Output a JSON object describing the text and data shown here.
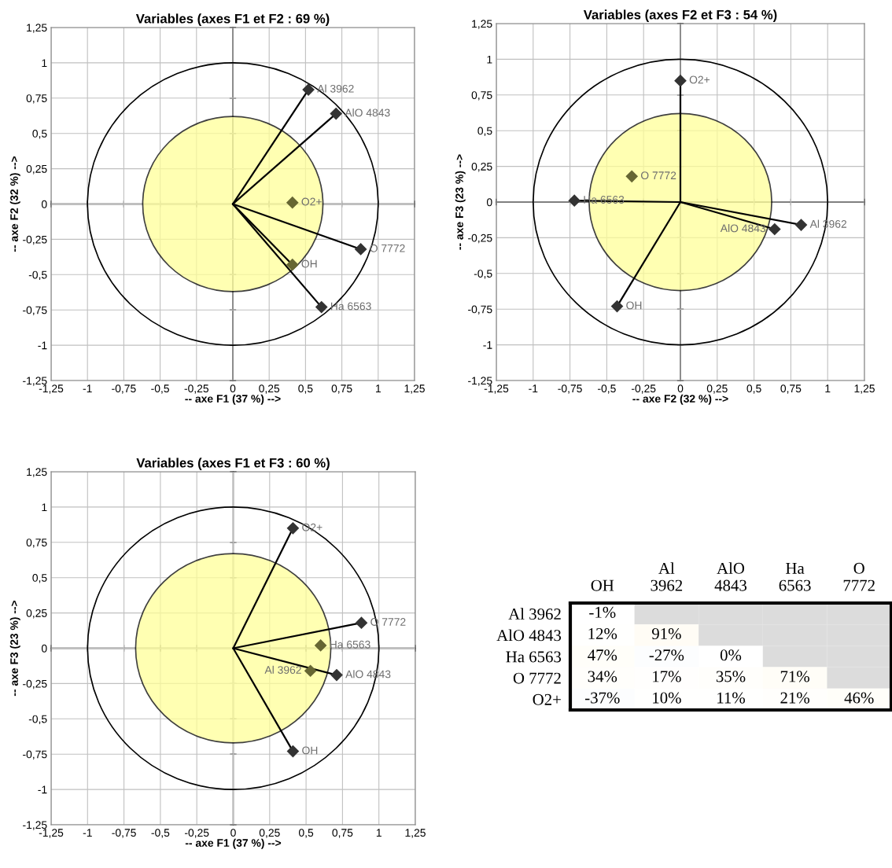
{
  "chart_data": [
    {
      "type": "scatter",
      "title": "Variables (axes F1 et F2 : 69 %)",
      "xlabel": "-- axe F1 (37 %) -->",
      "ylabel": "-- axe F2 (32 %) -->",
      "xlim": [
        -1.25,
        1.25
      ],
      "ylim": [
        -1.25,
        1.25
      ],
      "xticks": [
        {
          "value": -1.25,
          "label": "-1,25"
        },
        -1,
        {
          "value": -0.75,
          "label": "-0,75"
        },
        {
          "value": -0.5,
          "label": "-0,5"
        },
        {
          "value": -0.25,
          "label": "-0,25"
        },
        0,
        {
          "value": 0.25,
          "label": "0,25"
        },
        {
          "value": 0.5,
          "label": "0,5"
        },
        {
          "value": 0.75,
          "label": "0,75"
        },
        1,
        {
          "value": 1.25,
          "label": "1,25"
        }
      ],
      "yticks": [
        {
          "value": -1.25,
          "label": "-1,25"
        },
        -1,
        {
          "value": -0.75,
          "label": "-0,75"
        },
        {
          "value": -0.5,
          "label": "-0,5"
        },
        {
          "value": -0.25,
          "label": "-0,25"
        },
        0,
        {
          "value": 0.25,
          "label": "0,25"
        },
        {
          "value": 0.5,
          "label": "0,5"
        },
        {
          "value": 0.75,
          "label": "0,75"
        },
        1,
        {
          "value": 1.25,
          "label": "1,25"
        }
      ],
      "grid": true,
      "series": [
        {
          "type": "line",
          "color": "#000000",
          "x": [
            0,
            0.52
          ],
          "values": [
            0,
            0.81
          ]
        },
        {
          "type": "line",
          "color": "#000000",
          "x": [
            0,
            0.71
          ],
          "values": [
            0,
            0.64
          ]
        },
        {
          "type": "line",
          "color": "#000000",
          "x": [
            0,
            0.88
          ],
          "values": [
            0,
            -0.32
          ]
        },
        {
          "type": "line",
          "color": "#000000",
          "x": [
            0,
            0.41
          ],
          "values": [
            0,
            -0.43
          ]
        },
        {
          "type": "line",
          "color": "#000000",
          "x": [
            0,
            0.61
          ],
          "values": [
            0,
            -0.73
          ]
        },
        {
          "type": "scatter",
          "name": "Al 3962",
          "color": "#333333",
          "marker": "diamond",
          "x": [
            0.52
          ],
          "values": [
            0.81
          ]
        },
        {
          "type": "scatter",
          "name": "AlO 4843",
          "color": "#333333",
          "marker": "diamond",
          "x": [
            0.71
          ],
          "values": [
            0.64
          ]
        },
        {
          "type": "scatter",
          "name": "O2+",
          "color": "#666633",
          "marker": "diamond",
          "x": [
            0.41
          ],
          "values": [
            0.01
          ]
        },
        {
          "type": "scatter",
          "name": "O 7772",
          "color": "#333333",
          "marker": "diamond",
          "x": [
            0.88
          ],
          "values": [
            -0.32
          ]
        },
        {
          "type": "scatter",
          "name": "OH",
          "color": "#666633",
          "marker": "diamond",
          "x": [
            0.41
          ],
          "values": [
            -0.43
          ]
        },
        {
          "type": "scatter",
          "name": "Ha 6563",
          "color": "#333333",
          "marker": "diamond",
          "x": [
            0.61
          ],
          "values": [
            -0.73
          ]
        }
      ]
    },
    {
      "type": "scatter",
      "title": "Variables (axes F2 et F3 : 54 %)",
      "xlabel": "-- axe F2 (32 %) -->",
      "ylabel": "-- axe F3 (23 %) -->",
      "xlim": [
        -1.25,
        1.25
      ],
      "ylim": [
        -1.25,
        1.25
      ],
      "xticks": [
        {
          "value": -1.25,
          "label": "-1,25"
        },
        -1,
        {
          "value": -0.75,
          "label": "-0,75"
        },
        {
          "value": -0.5,
          "label": "-0,5"
        },
        {
          "value": -0.25,
          "label": "-0,25"
        },
        0,
        {
          "value": 0.25,
          "label": "0,25"
        },
        {
          "value": 0.5,
          "label": "0,5"
        },
        {
          "value": 0.75,
          "label": "0,75"
        },
        1,
        {
          "value": 1.25,
          "label": "1,25"
        }
      ],
      "yticks": [
        {
          "value": -1.25,
          "label": "-1,25"
        },
        -1,
        {
          "value": -0.75,
          "label": "-0,75"
        },
        {
          "value": -0.5,
          "label": "-0,5"
        },
        {
          "value": -0.25,
          "label": "-0,25"
        },
        0,
        {
          "value": 0.25,
          "label": "0,25"
        },
        {
          "value": 0.5,
          "label": "0,5"
        },
        {
          "value": 0.75,
          "label": "0,75"
        },
        1,
        {
          "value": 1.25,
          "label": "1,25"
        }
      ],
      "grid": true,
      "series": [
        {
          "type": "line",
          "color": "#000000",
          "x": [
            0,
            0
          ],
          "values": [
            0,
            0.85
          ]
        },
        {
          "type": "line",
          "color": "#000000",
          "x": [
            0,
            -0.72
          ],
          "values": [
            0,
            0.01
          ]
        },
        {
          "type": "line",
          "color": "#000000",
          "x": [
            0,
            -0.43
          ],
          "values": [
            0,
            -0.73
          ]
        },
        {
          "type": "line",
          "color": "#000000",
          "x": [
            0,
            0.64
          ],
          "values": [
            0,
            -0.19
          ]
        },
        {
          "type": "line",
          "color": "#000000",
          "x": [
            0,
            0.82
          ],
          "values": [
            0,
            -0.16
          ]
        },
        {
          "type": "scatter",
          "name": "O2+",
          "color": "#333333",
          "marker": "diamond",
          "x": [
            0
          ],
          "values": [
            0.85
          ]
        },
        {
          "type": "scatter",
          "name": "O 7772",
          "color": "#666633",
          "marker": "diamond",
          "x": [
            -0.33
          ],
          "values": [
            0.18
          ]
        },
        {
          "type": "scatter",
          "name": "Ha 6563",
          "color": "#333333",
          "marker": "diamond",
          "x": [
            -0.72
          ],
          "values": [
            0.01
          ]
        },
        {
          "type": "scatter",
          "name": "OH",
          "color": "#333333",
          "marker": "diamond",
          "x": [
            -0.43
          ],
          "values": [
            -0.73
          ]
        },
        {
          "type": "scatter",
          "name": "AlO 4843",
          "color": "#333333",
          "marker": "diamond",
          "x": [
            0.64
          ],
          "values": [
            -0.19
          ]
        },
        {
          "type": "scatter",
          "name": "Al 3962",
          "color": "#333333",
          "marker": "diamond",
          "x": [
            0.82
          ],
          "values": [
            -0.16
          ]
        }
      ]
    },
    {
      "type": "scatter",
      "title": "Variables (axes F1 et F3 : 60 %)",
      "xlabel": "-- axe F1 (37 %) -->",
      "ylabel": "-- axe F3 (23 %) -->",
      "xlim": [
        -1.25,
        1.25
      ],
      "ylim": [
        -1.25,
        1.25
      ],
      "xticks": [
        {
          "value": -1.25,
          "label": "-1,25"
        },
        -1,
        {
          "value": -0.75,
          "label": "-0,75"
        },
        {
          "value": -0.5,
          "label": "-0,5"
        },
        {
          "value": -0.25,
          "label": "-0,25"
        },
        0,
        {
          "value": 0.25,
          "label": "0,25"
        },
        {
          "value": 0.5,
          "label": "0,5"
        },
        {
          "value": 0.75,
          "label": "0,75"
        },
        1,
        {
          "value": 1.25,
          "label": "1,25"
        }
      ],
      "yticks": [
        {
          "value": -1.25,
          "label": "-1,25"
        },
        -1,
        {
          "value": -0.75,
          "label": "-0,75"
        },
        {
          "value": -0.5,
          "label": "-0,5"
        },
        {
          "value": -0.25,
          "label": "-0,25"
        },
        0,
        {
          "value": 0.25,
          "label": "0,25"
        },
        {
          "value": 0.5,
          "label": "0,5"
        },
        {
          "value": 0.75,
          "label": "0,75"
        },
        1,
        {
          "value": 1.25,
          "label": "1,25"
        }
      ],
      "grid": true,
      "series": [
        {
          "type": "line",
          "color": "#000000",
          "x": [
            0,
            0.41
          ],
          "values": [
            0,
            0.85
          ]
        },
        {
          "type": "line",
          "color": "#000000",
          "x": [
            0,
            0.88
          ],
          "values": [
            0,
            0.18
          ]
        },
        {
          "type": "line",
          "color": "#000000",
          "x": [
            0,
            0.71
          ],
          "values": [
            0,
            -0.19
          ]
        },
        {
          "type": "line",
          "color": "#000000",
          "x": [
            0,
            0.41
          ],
          "values": [
            0,
            -0.73
          ]
        },
        {
          "type": "scatter",
          "name": "O2+",
          "color": "#333333",
          "marker": "diamond",
          "x": [
            0.41
          ],
          "values": [
            0.85
          ]
        },
        {
          "type": "scatter",
          "name": "O 7772",
          "color": "#333333",
          "marker": "diamond",
          "x": [
            0.88
          ],
          "values": [
            0.18
          ]
        },
        {
          "type": "scatter",
          "name": "Ha 6563",
          "color": "#666633",
          "marker": "diamond",
          "x": [
            0.6
          ],
          "values": [
            0.02
          ]
        },
        {
          "type": "scatter",
          "name": "Al 3962",
          "color": "#666633",
          "marker": "diamond",
          "x": [
            0.53
          ],
          "values": [
            -0.16
          ]
        },
        {
          "type": "scatter",
          "name": "AlO 4843",
          "color": "#333333",
          "marker": "diamond",
          "x": [
            0.71
          ],
          "values": [
            -0.19
          ]
        },
        {
          "type": "scatter",
          "name": "OH",
          "color": "#333333",
          "marker": "diamond",
          "x": [
            0.41
          ],
          "values": [
            -0.73
          ]
        }
      ]
    },
    {
      "type": "heatmap",
      "categories": [
        "OH",
        "Al 3962",
        "AlO 4843",
        "Ha 6563",
        "O 7772"
      ],
      "y_categories": [
        "Al 3962",
        "AlO 4843",
        "Ha 6563",
        "O 7772",
        "O2+"
      ],
      "cells": [
        [
          -1,
          null,
          null,
          null,
          null
        ],
        [
          12,
          91,
          null,
          null,
          null
        ],
        [
          47,
          -27,
          0,
          null,
          null
        ],
        [
          34,
          17,
          35,
          71,
          null
        ],
        [
          -37,
          10,
          11,
          21,
          46
        ]
      ],
      "cell_labels": [
        [
          "-1%",
          null,
          null,
          null,
          null
        ],
        [
          "12%",
          "91%",
          null,
          null,
          null
        ],
        [
          "47%",
          "-27%",
          "0%",
          null,
          null
        ],
        [
          "34%",
          "17%",
          "35%",
          "71%",
          null
        ],
        [
          "-37%",
          "10%",
          "11%",
          "21%",
          "46%"
        ]
      ]
    }
  ]
}
